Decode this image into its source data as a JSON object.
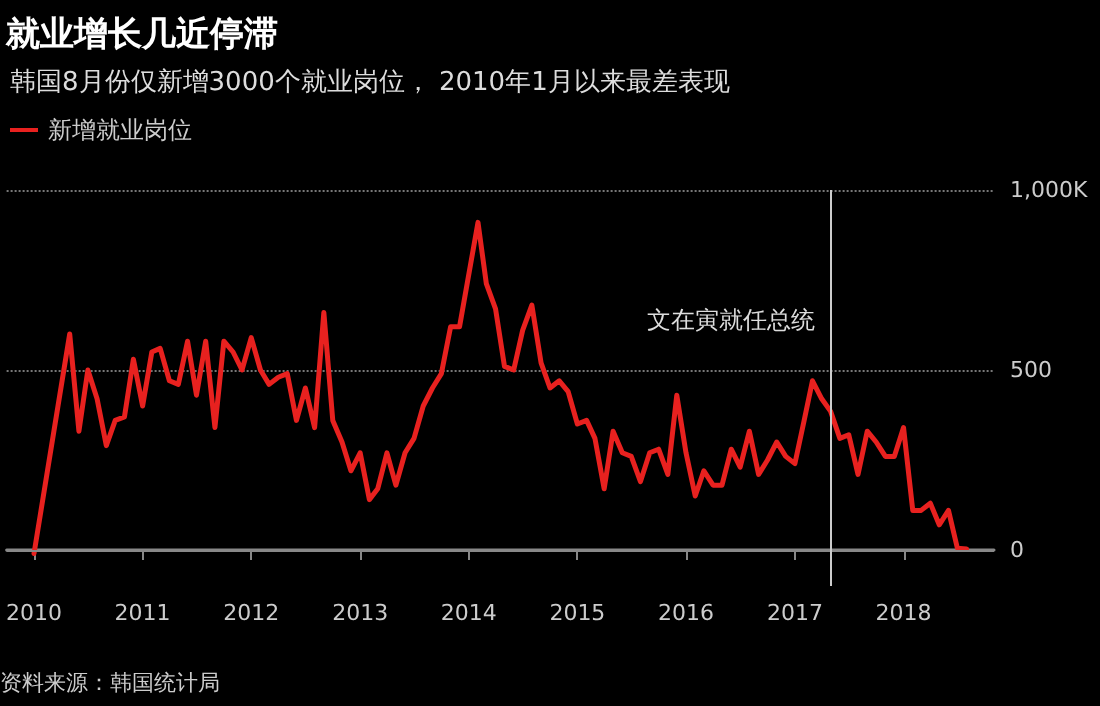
{
  "chart_data": {
    "type": "line",
    "title": "就业增长几近停滞",
    "subtitle": "韩国8月份仅新增3000个就业岗位， 2010年1月以来最差表现",
    "x": [
      "2010-01",
      "2010-05",
      "2010-06",
      "2010-07",
      "2010-08",
      "2010-09",
      "2010-10",
      "2010-11",
      "2010-12",
      "2011-01",
      "2011-02",
      "2011-03",
      "2011-04",
      "2011-05",
      "2011-06",
      "2011-07",
      "2011-08",
      "2011-09",
      "2011-10",
      "2011-11",
      "2011-12",
      "2012-01",
      "2012-02",
      "2012-03",
      "2012-04",
      "2012-05",
      "2012-06",
      "2012-07",
      "2012-08",
      "2012-09",
      "2012-10",
      "2012-11",
      "2012-12",
      "2013-01",
      "2013-02",
      "2013-03",
      "2013-04",
      "2013-05",
      "2013-06",
      "2013-07",
      "2013-08",
      "2013-09",
      "2013-10",
      "2013-11",
      "2013-12",
      "2014-02",
      "2014-03",
      "2014-04",
      "2014-05",
      "2014-06",
      "2014-07",
      "2014-08",
      "2014-09",
      "2014-10",
      "2014-11",
      "2014-12",
      "2015-01",
      "2015-02",
      "2015-03",
      "2015-04",
      "2015-05",
      "2015-06",
      "2015-07",
      "2015-08",
      "2015-09",
      "2015-10",
      "2015-11",
      "2015-12",
      "2016-01",
      "2016-02",
      "2016-03",
      "2016-04",
      "2016-05",
      "2016-06",
      "2016-07",
      "2016-08",
      "2016-09",
      "2016-10",
      "2016-11",
      "2016-12",
      "2017-01",
      "2017-02",
      "2017-03",
      "2017-04",
      "2017-05",
      "2017-06",
      "2017-07",
      "2017-08",
      "2017-09",
      "2017-10",
      "2017-11",
      "2017-12",
      "2018-01",
      "2018-02",
      "2018-03",
      "2018-04",
      "2018-05",
      "2018-06",
      "2018-07",
      "2018-08"
    ],
    "series": [
      {
        "name": "新增就业岗位",
        "color": "#e8211f",
        "values": [
          -10,
          600,
          330,
          500,
          420,
          290,
          360,
          370,
          530,
          400,
          550,
          560,
          470,
          460,
          580,
          430,
          580,
          340,
          580,
          550,
          500,
          590,
          500,
          460,
          480,
          490,
          360,
          450,
          340,
          660,
          360,
          300,
          220,
          270,
          140,
          170,
          270,
          180,
          270,
          310,
          400,
          450,
          490,
          620,
          620,
          910,
          740,
          670,
          510,
          500,
          610,
          680,
          520,
          450,
          470,
          440,
          350,
          360,
          310,
          170,
          330,
          270,
          260,
          190,
          270,
          280,
          210,
          430,
          270,
          150,
          220,
          180,
          180,
          280,
          230,
          330,
          210,
          250,
          300,
          260,
          240,
          360,
          470,
          420,
          385,
          310,
          320,
          210,
          330,
          300,
          260,
          260,
          340,
          110,
          110,
          130,
          70,
          110,
          5,
          3
        ]
      }
    ],
    "xlim": [
      "2009-10",
      "2018-11"
    ],
    "xticks": [
      {
        "value": "2010",
        "label": "2010"
      },
      {
        "value": "2011",
        "label": "2011"
      },
      {
        "value": "2012",
        "label": "2012"
      },
      {
        "value": "2013",
        "label": "2013"
      },
      {
        "value": "2014",
        "label": "2014"
      },
      {
        "value": "2015",
        "label": "2015"
      },
      {
        "value": "2016",
        "label": "2016"
      },
      {
        "value": "2017",
        "label": "2017"
      },
      {
        "value": "2018",
        "label": "2018"
      }
    ],
    "ylim": [
      -100,
      1000
    ],
    "yticks": [
      0,
      500,
      {
        "value": 1000,
        "label": "1,000K"
      }
    ],
    "grid": "y",
    "legend": "top left",
    "marker": "none",
    "line_style": "solid",
    "ref_lines": [
      {
        "axis": "x",
        "value": "2017-05",
        "label": "文在寅就任总统",
        "color": "#cccccc"
      },
      {
        "axis": "y",
        "value": 0,
        "color": "#888888"
      }
    ],
    "annotations": [
      "资料来源：韩国统计局"
    ]
  }
}
